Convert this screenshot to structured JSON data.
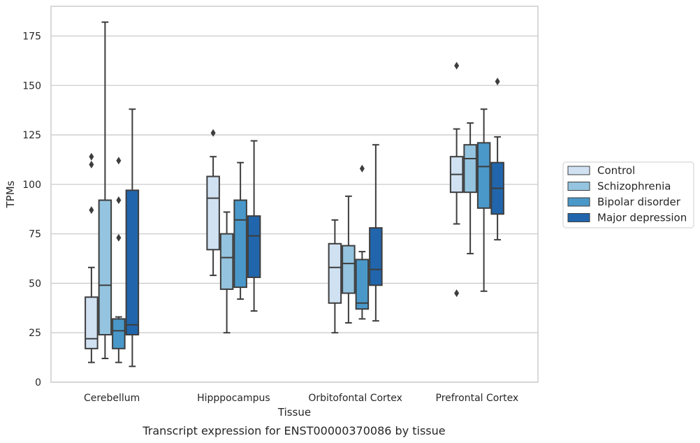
{
  "chart_data": {
    "type": "boxplot",
    "xlabel": "Tissue",
    "ylabel": "TPMs",
    "caption": "Transcript expression for ENST00000370086 by tissue",
    "ylim": [
      0,
      190
    ],
    "yticks": [
      0,
      25,
      50,
      75,
      100,
      125,
      150,
      175
    ],
    "grid": "horizontal",
    "legend_position": "right",
    "categories": [
      "Cerebellum",
      "Hipppocampus",
      "Orbitofontal Cortex",
      "Prefrontal Cortex"
    ],
    "series": [
      {
        "name": "Control",
        "color": "#d0e1f2",
        "boxes": [
          {
            "whisker_low": 10,
            "q1": 17,
            "median": 22,
            "q3": 43,
            "whisker_high": 58,
            "outliers": [
              114,
              110,
              87
            ]
          },
          {
            "whisker_low": 54,
            "q1": 67,
            "median": 93,
            "q3": 104,
            "whisker_high": 114,
            "outliers": [
              126
            ]
          },
          {
            "whisker_low": 25,
            "q1": 40,
            "median": 58,
            "q3": 70,
            "whisker_high": 82,
            "outliers": []
          },
          {
            "whisker_low": 80,
            "q1": 96,
            "median": 105,
            "q3": 114,
            "whisker_high": 128,
            "outliers": [
              160,
              45
            ]
          }
        ]
      },
      {
        "name": "Schizophrenia",
        "color": "#94c4df",
        "boxes": [
          {
            "whisker_low": 12,
            "q1": 24,
            "median": 49,
            "q3": 92,
            "whisker_high": 182,
            "outliers": []
          },
          {
            "whisker_low": 25,
            "q1": 47,
            "median": 63,
            "q3": 75,
            "whisker_high": 86,
            "outliers": []
          },
          {
            "whisker_low": 30,
            "q1": 45,
            "median": 60,
            "q3": 69,
            "whisker_high": 94,
            "outliers": []
          },
          {
            "whisker_low": 65,
            "q1": 96,
            "median": 113,
            "q3": 120,
            "whisker_high": 131,
            "outliers": []
          }
        ]
      },
      {
        "name": "Bipolar disorder",
        "color": "#4a98c9",
        "boxes": [
          {
            "whisker_low": 10,
            "q1": 17,
            "median": 26,
            "q3": 32,
            "whisker_high": 33,
            "outliers": [
              112,
              92,
              73
            ]
          },
          {
            "whisker_low": 42,
            "q1": 48,
            "median": 82,
            "q3": 92,
            "whisker_high": 111,
            "outliers": []
          },
          {
            "whisker_low": 32,
            "q1": 37,
            "median": 40,
            "q3": 62,
            "whisker_high": 66,
            "outliers": [
              108
            ]
          },
          {
            "whisker_low": 46,
            "q1": 88,
            "median": 109,
            "q3": 121,
            "whisker_high": 138,
            "outliers": []
          }
        ]
      },
      {
        "name": "Major depression",
        "color": "#2166ac",
        "boxes": [
          {
            "whisker_low": 8,
            "q1": 24,
            "median": 29,
            "q3": 97,
            "whisker_high": 138,
            "outliers": []
          },
          {
            "whisker_low": 36,
            "q1": 53,
            "median": 74,
            "q3": 84,
            "whisker_high": 122,
            "outliers": []
          },
          {
            "whisker_low": 31,
            "q1": 49,
            "median": 57,
            "q3": 78,
            "whisker_high": 120,
            "outliers": []
          },
          {
            "whisker_low": 72,
            "q1": 85,
            "median": 98,
            "q3": 111,
            "whisker_high": 124,
            "outliers": [
              152
            ]
          }
        ]
      }
    ]
  }
}
